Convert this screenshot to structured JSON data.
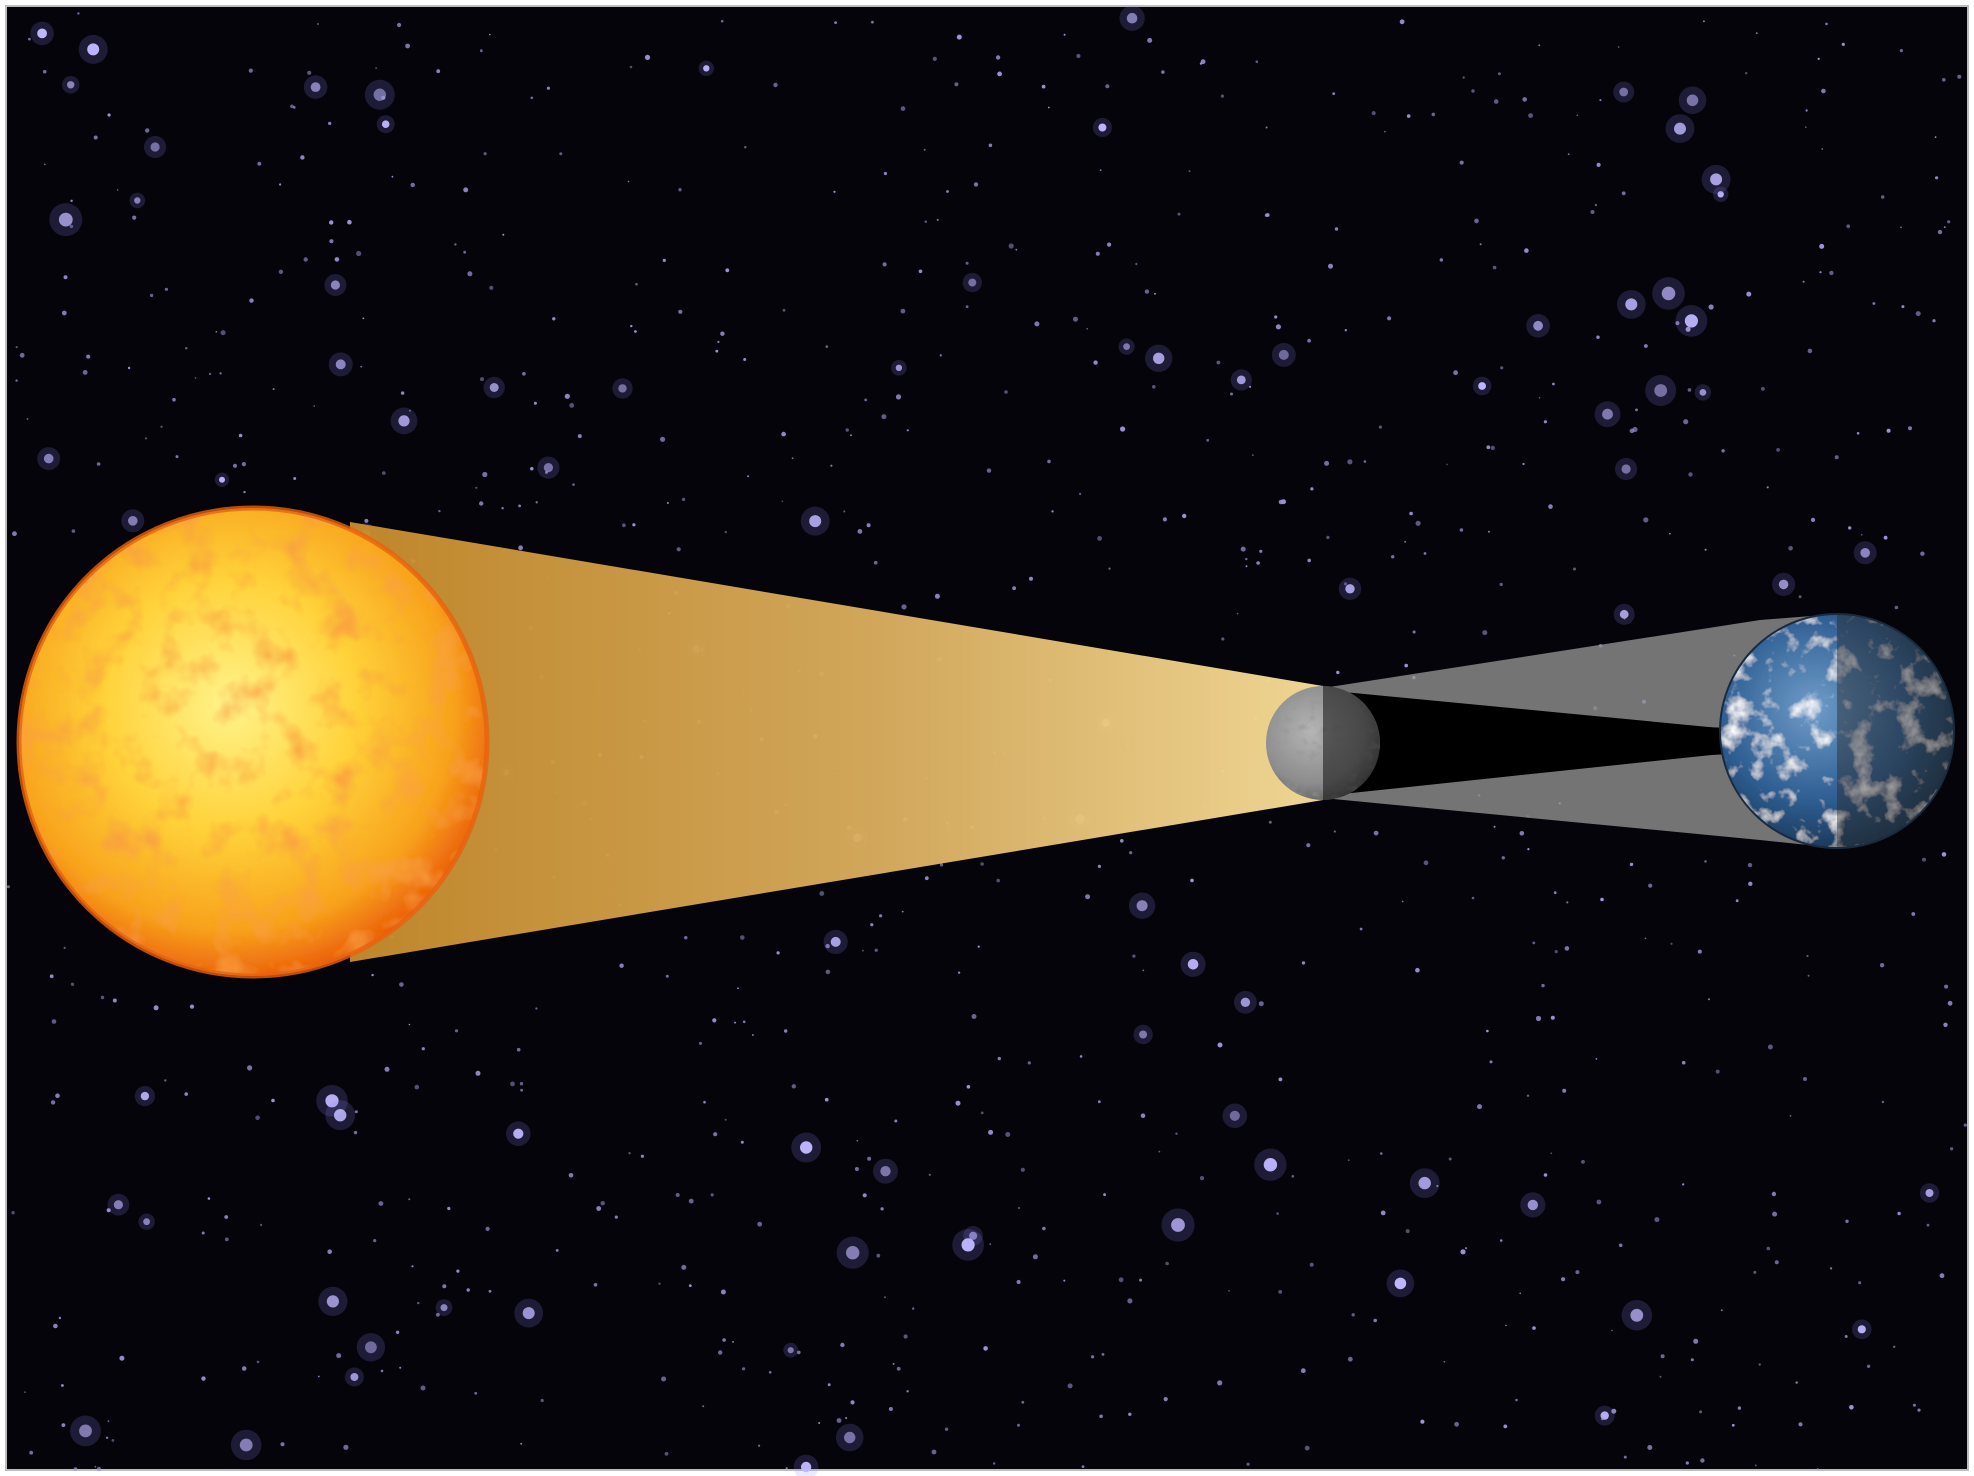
{
  "diagram": {
    "description_kind": "solar eclipse geometry",
    "bodies": [
      {
        "id": "sun",
        "icon": "sun-icon"
      },
      {
        "id": "moon",
        "icon": "moon-icon"
      },
      {
        "id": "earth",
        "icon": "earth-icon"
      }
    ],
    "colors": {
      "space": "#05040a",
      "star": "#b9b2ff",
      "sun_core": "#ffe35a",
      "sun_edge": "#f05a0c",
      "light_cone": "#f2cf7e",
      "penumbra": "#8a8a8a",
      "umbra": "#000000",
      "moon": "#8e8e8e",
      "earth_ocean": "#2c5b8f"
    }
  }
}
